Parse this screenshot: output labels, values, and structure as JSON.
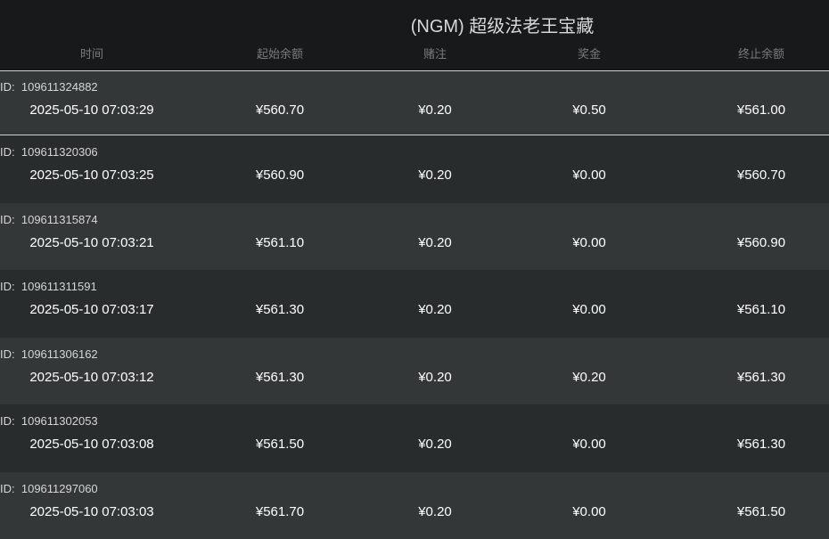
{
  "title": "(NGM) 超级法老王宝藏",
  "columns": [
    "时间",
    "起始余额",
    "赌注",
    "奖金",
    "终止余额"
  ],
  "id_prefix": "ID:",
  "rows": [
    {
      "id": "109611324882",
      "time": "2025-05-10 07:03:29",
      "start": "¥560.70",
      "bet": "¥0.20",
      "win": "¥0.50",
      "end": "¥561.00",
      "selected": true
    },
    {
      "id": "109611320306",
      "time": "2025-05-10 07:03:25",
      "start": "¥560.90",
      "bet": "¥0.20",
      "win": "¥0.00",
      "end": "¥560.70"
    },
    {
      "id": "109611315874",
      "time": "2025-05-10 07:03:21",
      "start": "¥561.10",
      "bet": "¥0.20",
      "win": "¥0.00",
      "end": "¥560.90"
    },
    {
      "id": "109611311591",
      "time": "2025-05-10 07:03:17",
      "start": "¥561.30",
      "bet": "¥0.20",
      "win": "¥0.00",
      "end": "¥561.10"
    },
    {
      "id": "109611306162",
      "time": "2025-05-10 07:03:12",
      "start": "¥561.30",
      "bet": "¥0.20",
      "win": "¥0.20",
      "end": "¥561.30"
    },
    {
      "id": "109611302053",
      "time": "2025-05-10 07:03:08",
      "start": "¥561.50",
      "bet": "¥0.20",
      "win": "¥0.00",
      "end": "¥561.30"
    },
    {
      "id": "109611297060",
      "time": "2025-05-10 07:03:03",
      "start": "¥561.70",
      "bet": "¥0.20",
      "win": "¥0.00",
      "end": "¥561.50"
    }
  ]
}
